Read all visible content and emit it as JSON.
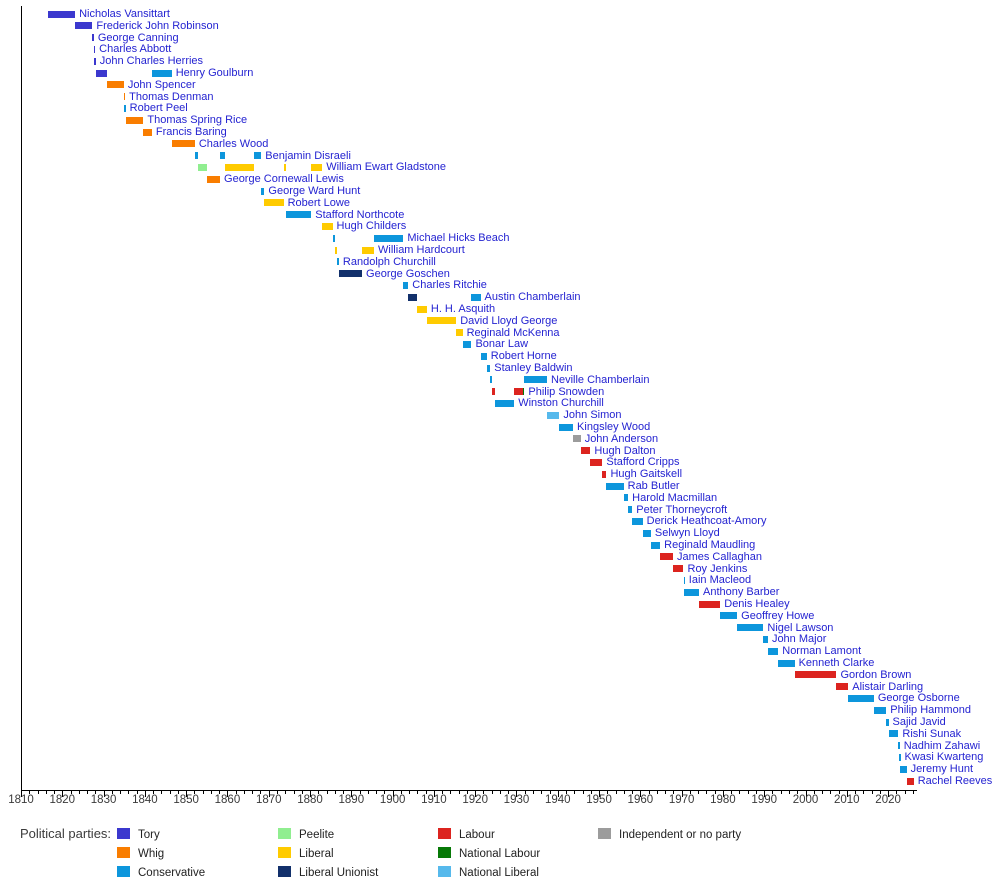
{
  "chart_data": {
    "type": "timeline",
    "title": "",
    "x_axis": {
      "start": 1810,
      "end": 2027,
      "major_tick_interval": 10,
      "minor_tick_interval": 2,
      "first_label": 1810,
      "last_label": 2020,
      "last_minor_tick": 2026
    },
    "party_colors": {
      "Tory": "#3B38CE",
      "Whig": "#F97D00",
      "Conservative": "#0D96DC",
      "Peelite": "#90EE90",
      "Liberal": "#FFCB00",
      "Liberal Unionist": "#12306B",
      "Labour": "#DC241F",
      "National Labour": "#077907",
      "National Liberal": "#56B9EC",
      "Independent or no party": "#9C9C9C"
    },
    "chancellors": [
      {
        "name": "Nicholas Vansittart",
        "segments": [
          [
            "Tory",
            1816.6,
            1823.1
          ]
        ]
      },
      {
        "name": "Frederick John Robinson",
        "segments": [
          [
            "Tory",
            1823.1,
            1827.3
          ]
        ]
      },
      {
        "name": "George Canning",
        "segments": [
          [
            "Tory",
            1827.3,
            1827.65
          ]
        ]
      },
      {
        "name": "Charles Abbott",
        "segments": [
          [
            "Tory",
            1827.65,
            1827.75
          ]
        ]
      },
      {
        "name": "John Charles Herries",
        "segments": [
          [
            "Tory",
            1827.75,
            1828.1
          ]
        ]
      },
      {
        "name": "Henry Goulburn",
        "segments": [
          [
            "Tory",
            1828.1,
            1830.9
          ],
          [
            "Conservative",
            1841.7,
            1846.5
          ]
        ]
      },
      {
        "name": "John Spencer",
        "segments": [
          [
            "Whig",
            1830.9,
            1834.9
          ]
        ]
      },
      {
        "name": "Thomas Denman",
        "segments": [
          [
            "Whig",
            1834.9,
            1835.0
          ]
        ]
      },
      {
        "name": "Robert Peel",
        "segments": [
          [
            "Conservative",
            1835.0,
            1835.35
          ]
        ]
      },
      {
        "name": "Thomas Spring Rice",
        "segments": [
          [
            "Whig",
            1835.35,
            1839.65
          ]
        ]
      },
      {
        "name": "Francis Baring",
        "segments": [
          [
            "Whig",
            1839.65,
            1841.7
          ]
        ]
      },
      {
        "name": "Charles Wood",
        "segments": [
          [
            "Whig",
            1846.5,
            1852.1
          ]
        ]
      },
      {
        "name": "Benjamin Disraeli",
        "segments": [
          [
            "Conservative",
            1852.1,
            1852.95
          ],
          [
            "Conservative",
            1858.2,
            1859.5
          ],
          [
            "Conservative",
            1866.5,
            1868.2
          ]
        ]
      },
      {
        "name": "William Ewart Gladstone",
        "segments": [
          [
            "Peelite",
            1852.95,
            1855.1
          ],
          [
            "Liberal",
            1859.5,
            1866.5
          ],
          [
            "Liberal",
            1873.6,
            1874.1
          ],
          [
            "Liberal",
            1880.3,
            1882.95
          ]
        ]
      },
      {
        "name": "George Cornewall Lewis",
        "segments": [
          [
            "Whig",
            1855.1,
            1858.2
          ]
        ]
      },
      {
        "name": "George Ward Hunt",
        "segments": [
          [
            "Conservative",
            1868.2,
            1868.95
          ]
        ]
      },
      {
        "name": "Robert Lowe",
        "segments": [
          [
            "Liberal",
            1868.95,
            1873.6
          ]
        ]
      },
      {
        "name": "Stafford Northcote",
        "segments": [
          [
            "Conservative",
            1874.1,
            1880.3
          ]
        ]
      },
      {
        "name": "Hugh Childers",
        "segments": [
          [
            "Liberal",
            1882.95,
            1885.45
          ]
        ]
      },
      {
        "name": "Michael Hicks Beach",
        "segments": [
          [
            "Conservative",
            1885.45,
            1886.1
          ],
          [
            "Conservative",
            1895.5,
            1902.6
          ]
        ]
      },
      {
        "name": "William Hardcourt",
        "segments": [
          [
            "Liberal",
            1886.1,
            1886.6
          ],
          [
            "Liberal",
            1892.6,
            1895.5
          ]
        ]
      },
      {
        "name": "Randolph Churchill",
        "segments": [
          [
            "Conservative",
            1886.6,
            1887.0
          ]
        ]
      },
      {
        "name": "George Goschen",
        "segments": [
          [
            "Liberal Unionist",
            1887.0,
            1892.6
          ]
        ]
      },
      {
        "name": "Charles Ritchie",
        "segments": [
          [
            "Conservative",
            1902.6,
            1903.8
          ]
        ]
      },
      {
        "name": "Austin Chamberlain",
        "segments": [
          [
            "Liberal Unionist",
            1903.8,
            1905.95
          ],
          [
            "Conservative",
            1919.1,
            1921.3
          ]
        ]
      },
      {
        "name": "H. H. Asquith",
        "segments": [
          [
            "Liberal",
            1905.95,
            1908.3
          ]
        ]
      },
      {
        "name": "David Lloyd George",
        "segments": [
          [
            "Liberal",
            1908.3,
            1915.4
          ]
        ]
      },
      {
        "name": "Reginald McKenna",
        "segments": [
          [
            "Liberal",
            1915.4,
            1916.95
          ]
        ]
      },
      {
        "name": "Bonar Law",
        "segments": [
          [
            "Conservative",
            1916.95,
            1919.1
          ]
        ]
      },
      {
        "name": "Robert Horne",
        "segments": [
          [
            "Conservative",
            1921.3,
            1922.8
          ]
        ]
      },
      {
        "name": "Stanley Baldwin",
        "segments": [
          [
            "Conservative",
            1922.8,
            1923.65
          ]
        ]
      },
      {
        "name": "Neville Chamberlain",
        "segments": [
          [
            "Conservative",
            1923.65,
            1924.1
          ],
          [
            "Conservative",
            1931.85,
            1937.4
          ]
        ]
      },
      {
        "name": "Philip Snowden",
        "segments": [
          [
            "Labour",
            1924.1,
            1924.85
          ],
          [
            "Labour",
            1929.45,
            1931.6
          ],
          [
            "National Labour",
            1931.6,
            1931.85
          ]
        ]
      },
      {
        "name": "Winston Churchill",
        "segments": [
          [
            "Conservative",
            1924.85,
            1929.45
          ]
        ]
      },
      {
        "name": "John Simon",
        "segments": [
          [
            "National Liberal",
            1937.4,
            1940.4
          ]
        ]
      },
      {
        "name": "Kingsley Wood",
        "segments": [
          [
            "Conservative",
            1940.4,
            1943.7
          ]
        ]
      },
      {
        "name": "John Anderson",
        "segments": [
          [
            "Independent or no party",
            1943.7,
            1945.55
          ]
        ]
      },
      {
        "name": "Hugh Dalton",
        "segments": [
          [
            "Labour",
            1945.55,
            1947.9
          ]
        ]
      },
      {
        "name": "Stafford Cripps",
        "segments": [
          [
            "Labour",
            1947.9,
            1950.8
          ]
        ]
      },
      {
        "name": "Hugh Gaitskell",
        "segments": [
          [
            "Labour",
            1950.8,
            1951.8
          ]
        ]
      },
      {
        "name": "Rab Butler",
        "segments": [
          [
            "Conservative",
            1951.8,
            1955.95
          ]
        ]
      },
      {
        "name": "Harold Macmillan",
        "segments": [
          [
            "Conservative",
            1955.95,
            1957.05
          ]
        ]
      },
      {
        "name": "Peter Thorneycroft",
        "segments": [
          [
            "Conservative",
            1957.05,
            1958.05
          ]
        ]
      },
      {
        "name": "Derick Heathcoat-Amory",
        "segments": [
          [
            "Conservative",
            1958.05,
            1960.55
          ]
        ]
      },
      {
        "name": "Selwyn Lloyd",
        "segments": [
          [
            "Conservative",
            1960.55,
            1962.55
          ]
        ]
      },
      {
        "name": "Reginald Maudling",
        "segments": [
          [
            "Conservative",
            1962.55,
            1964.8
          ]
        ]
      },
      {
        "name": "James Callaghan",
        "segments": [
          [
            "Labour",
            1964.8,
            1967.9
          ]
        ]
      },
      {
        "name": "Roy Jenkins",
        "segments": [
          [
            "Labour",
            1967.9,
            1970.45
          ]
        ]
      },
      {
        "name": "Iain Macleod",
        "segments": [
          [
            "Conservative",
            1970.45,
            1970.55
          ]
        ]
      },
      {
        "name": "Anthony Barber",
        "segments": [
          [
            "Conservative",
            1970.55,
            1974.2
          ]
        ]
      },
      {
        "name": "Denis Healey",
        "segments": [
          [
            "Labour",
            1974.2,
            1979.35
          ]
        ]
      },
      {
        "name": "Geoffrey Howe",
        "segments": [
          [
            "Conservative",
            1979.35,
            1983.45
          ]
        ]
      },
      {
        "name": "Nigel Lawson",
        "segments": [
          [
            "Conservative",
            1983.45,
            1989.8
          ]
        ]
      },
      {
        "name": "John Major",
        "segments": [
          [
            "Conservative",
            1989.8,
            1990.9
          ]
        ]
      },
      {
        "name": "Norman Lamont",
        "segments": [
          [
            "Conservative",
            1990.9,
            1993.4
          ]
        ]
      },
      {
        "name": "Kenneth Clarke",
        "segments": [
          [
            "Conservative",
            1993.4,
            1997.35
          ]
        ]
      },
      {
        "name": "Gordon Brown",
        "segments": [
          [
            "Labour",
            1997.35,
            2007.5
          ]
        ]
      },
      {
        "name": "Alistair Darling",
        "segments": [
          [
            "Labour",
            2007.5,
            2010.35
          ]
        ]
      },
      {
        "name": "George Osborne",
        "segments": [
          [
            "Conservative",
            2010.35,
            2016.55
          ]
        ]
      },
      {
        "name": "Philip Hammond",
        "segments": [
          [
            "Conservative",
            2016.55,
            2019.55
          ]
        ]
      },
      {
        "name": "Sajid Javid",
        "segments": [
          [
            "Conservative",
            2019.55,
            2020.1
          ]
        ]
      },
      {
        "name": "Rishi Sunak",
        "segments": [
          [
            "Conservative",
            2020.1,
            2022.5
          ]
        ]
      },
      {
        "name": "Nadhim Zahawi",
        "segments": [
          [
            "Conservative",
            2022.5,
            2022.7
          ]
        ]
      },
      {
        "name": "Kwasi Kwarteng",
        "segments": [
          [
            "Conservative",
            2022.7,
            2022.8
          ]
        ]
      },
      {
        "name": "Jeremy Hunt",
        "segments": [
          [
            "Conservative",
            2022.8,
            2024.5
          ]
        ]
      },
      {
        "name": "Rachel Reeves",
        "segments": [
          [
            "Labour",
            2024.5,
            2026.2
          ]
        ]
      }
    ]
  },
  "legend": {
    "title": "Political parties:",
    "columns": [
      [
        "Tory",
        "Whig",
        "Conservative"
      ],
      [
        "Peelite",
        "Liberal",
        "Liberal Unionist"
      ],
      [
        "Labour",
        "National Labour",
        "National Liberal"
      ],
      [
        "Independent or no party"
      ]
    ]
  }
}
